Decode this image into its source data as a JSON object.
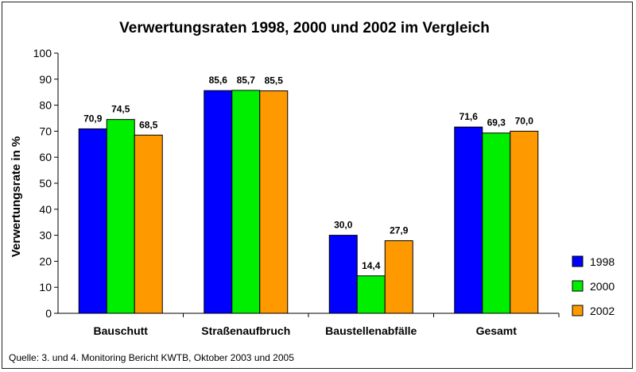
{
  "chart_data": {
    "type": "bar",
    "title": "Verwertungsraten 1998, 2000 und 2002 im Vergleich",
    "xlabel": "",
    "ylabel": "Verwertungsrate in %",
    "ylim": [
      0,
      100
    ],
    "yticks": [
      0,
      10,
      20,
      30,
      40,
      50,
      60,
      70,
      80,
      90,
      100
    ],
    "grid": false,
    "legend_position": "right",
    "categories": [
      "Bauschutt",
      "Straßenaufbruch",
      "Baustellenabfälle",
      "Gesamt"
    ],
    "series": [
      {
        "name": "1998",
        "color": "#0000FF",
        "values": [
          70.9,
          85.6,
          30.0,
          71.6
        ],
        "labels": [
          "70,9",
          "85,6",
          "30,0",
          "71,6"
        ]
      },
      {
        "name": "2000",
        "color": "#00EE00",
        "values": [
          74.5,
          85.7,
          14.4,
          69.3
        ],
        "labels": [
          "74,5",
          "85,7",
          "14,4",
          "69,3"
        ]
      },
      {
        "name": "2002",
        "color": "#FF9900",
        "values": [
          68.5,
          85.5,
          27.9,
          70.0
        ],
        "labels": [
          "68,5",
          "85,5",
          "27,9",
          "70,0"
        ]
      }
    ]
  },
  "source": "Quelle: 3. und 4. Monitoring Bericht KWTB, Oktober 2003 und 2005"
}
